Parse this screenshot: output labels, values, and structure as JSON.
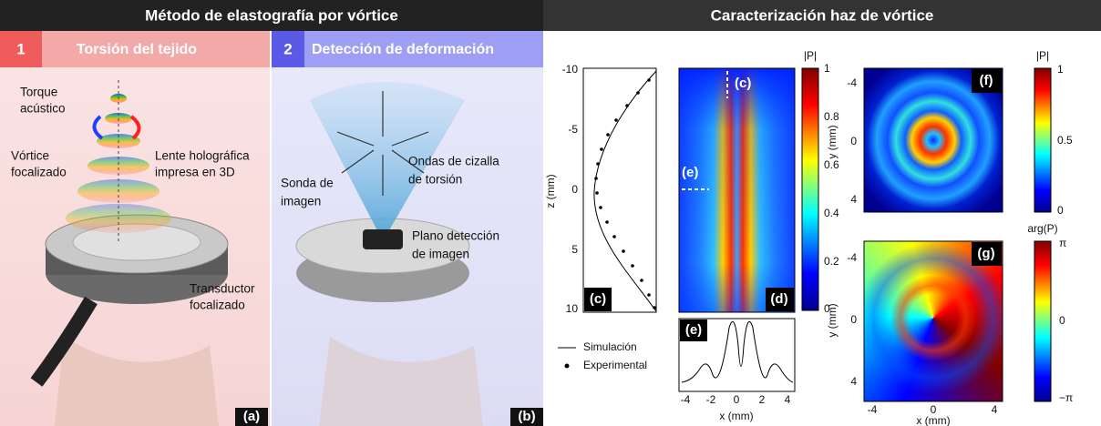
{
  "header": {
    "left_title": "Método de elastografía por vórtice",
    "right_title": "Caracterización haz de vórtice"
  },
  "steps": [
    {
      "number": "1",
      "label": "Torsión del tejido"
    },
    {
      "number": "2",
      "label": "Detección de deformación"
    }
  ],
  "panel_a": {
    "tag": "(a)",
    "labels": {
      "torque": [
        "Torque",
        "acústico"
      ],
      "vortex": [
        "Vórtice",
        "focalizado"
      ],
      "lens": [
        "Lente holográfica",
        "impresa en 3D"
      ],
      "transducer": [
        "Transductor",
        "focalizado"
      ]
    }
  },
  "panel_b": {
    "tag": "(b)",
    "labels": {
      "probe": [
        "Sonda de",
        "imagen"
      ],
      "waves": [
        "Ondas de cizalla",
        "de torsión"
      ],
      "plane": [
        "Plano detección",
        "de imagen"
      ]
    }
  },
  "plot_c": {
    "tag": "(c)",
    "ylabel": "z (mm)",
    "yticks": [
      "-10",
      "-5",
      "0",
      "5",
      "10"
    ]
  },
  "plot_d": {
    "tag": "(d)",
    "markers": [
      "(c)",
      "(e)"
    ],
    "colorbar_label": "|P|",
    "colorbar_ticks": [
      "1",
      "0.8",
      "0.6",
      "0.4",
      "0.2",
      "0"
    ]
  },
  "plot_e": {
    "tag": "(e)",
    "xlabel": "x (mm)",
    "xticks": [
      "-4",
      "-2",
      "0",
      "2",
      "4"
    ]
  },
  "legend": [
    "Simulación",
    "Experimental"
  ],
  "plot_f": {
    "tag": "(f)",
    "ylabel": "y (mm)",
    "yticks": [
      "-4",
      "0",
      "4"
    ],
    "colorbar_label": "|P|",
    "colorbar_ticks": [
      "1",
      "0.5",
      "0"
    ]
  },
  "plot_g": {
    "tag": "(g)",
    "ylabel": "y (mm)",
    "xlabel": "x (mm)",
    "yticks": [
      "-4",
      "0",
      "4"
    ],
    "xticks": [
      "-4",
      "0",
      "4"
    ],
    "colorbar_label": "arg(P)",
    "colorbar_ticks": [
      "π",
      "0",
      "−π"
    ]
  }
}
